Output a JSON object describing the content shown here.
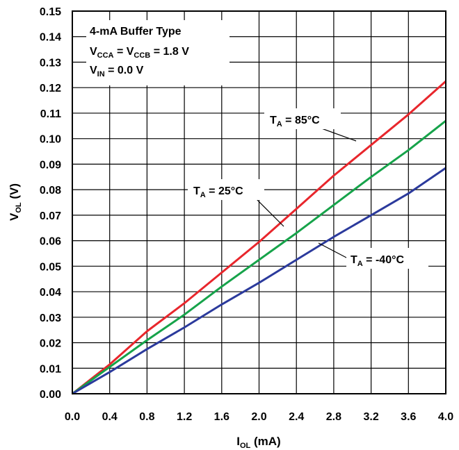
{
  "chart_data": {
    "type": "line",
    "xlabel": {
      "main": "I",
      "sub": "OL",
      "unit": " (mA)"
    },
    "ylabel": {
      "main": "V",
      "sub": "OL",
      "unit": " (V)"
    },
    "xlim": [
      0,
      4.0
    ],
    "ylim": [
      0,
      0.15
    ],
    "x_ticks": [
      "0.0",
      "0.4",
      "0.8",
      "1.2",
      "1.6",
      "2.0",
      "2.4",
      "2.8",
      "3.2",
      "3.6",
      "4.0"
    ],
    "y_ticks": [
      "0.00",
      "0.01",
      "0.02",
      "0.03",
      "0.04",
      "0.05",
      "0.06",
      "0.07",
      "0.08",
      "0.09",
      "0.10",
      "0.11",
      "0.12",
      "0.13",
      "0.14",
      "0.15"
    ],
    "grid": true,
    "legend_box": {
      "line1": "4-mA Buffer Type",
      "line2": {
        "a": "V",
        "a_sub": "CCA",
        "mid": " = V",
        "b_sub": "CCB",
        "end": " = 1.8 V"
      },
      "line3": {
        "a": "V",
        "a_sub": "IN",
        "end": " = 0.0 V"
      }
    },
    "series": [
      {
        "name": {
          "main": "T",
          "sub": "A",
          "rest": " = 85°C"
        },
        "color": "#e8262c",
        "x": [
          0,
          0.4,
          0.8,
          1.2,
          1.6,
          2.0,
          2.4,
          2.8,
          3.2,
          3.6,
          4.0
        ],
        "y": [
          0,
          0.0115,
          0.0245,
          0.0355,
          0.0475,
          0.0595,
          0.0725,
          0.0855,
          0.0975,
          0.1095,
          0.1225
        ]
      },
      {
        "name": {
          "main": "T",
          "sub": "A",
          "rest": " = 25°C"
        },
        "color": "#16a34a",
        "x": [
          0,
          0.4,
          0.8,
          1.2,
          1.6,
          2.0,
          2.4,
          2.8,
          3.2,
          3.6,
          4.0
        ],
        "y": [
          0,
          0.0105,
          0.021,
          0.031,
          0.042,
          0.0525,
          0.063,
          0.074,
          0.085,
          0.0955,
          0.107
        ]
      },
      {
        "name": {
          "main": "T",
          "sub": "A",
          "rest": " = -40°C"
        },
        "color": "#2b3a9c",
        "x": [
          0,
          0.4,
          0.8,
          1.2,
          1.6,
          2.0,
          2.4,
          2.8,
          3.2,
          3.6,
          4.0
        ],
        "y": [
          0,
          0.0085,
          0.0175,
          0.026,
          0.035,
          0.0435,
          0.0525,
          0.0615,
          0.07,
          0.0785,
          0.0885
        ]
      }
    ]
  }
}
